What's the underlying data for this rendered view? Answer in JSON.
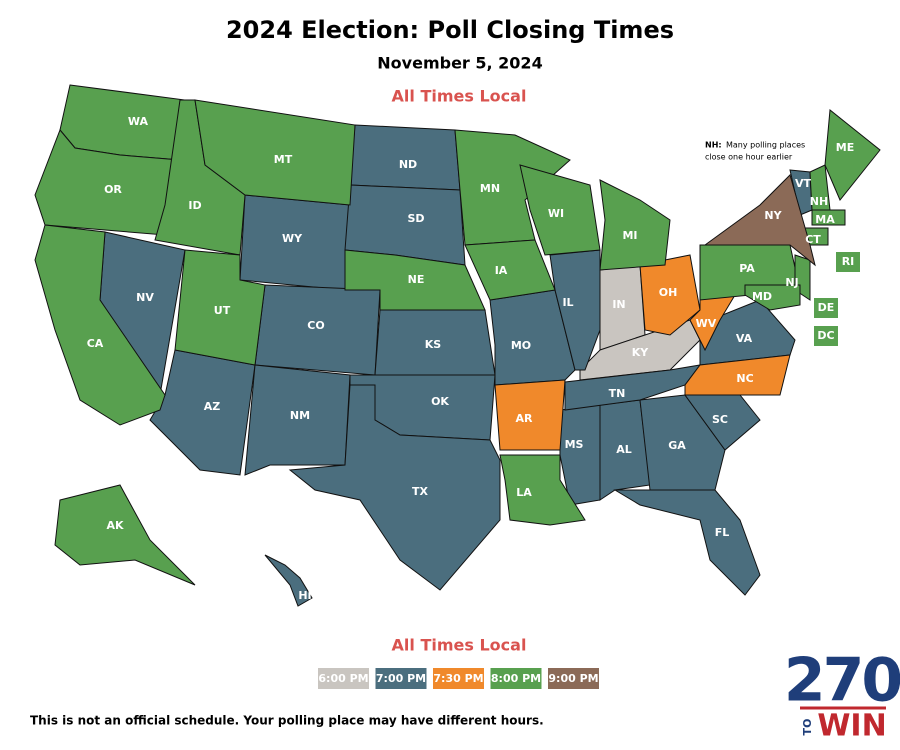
{
  "title": "2024 Election: Poll Closing Times",
  "subtitle": "November 5, 2024",
  "header_note": "All Times Local",
  "nh_note": {
    "abbr": "NH:",
    "line1": "Many polling places",
    "line2": "close one hour earlier"
  },
  "legend": {
    "title": "All Times Local",
    "items": [
      {
        "label": "6:00 PM",
        "color": "#c9c5c0",
        "states": [
          "IN",
          "KY"
        ]
      },
      {
        "label": "7:00 PM",
        "color": "#4b6e7e",
        "states": [
          "VT",
          "NV",
          "WY",
          "AZ",
          "CO",
          "NM",
          "ND",
          "SD",
          "KS",
          "OK",
          "TX",
          "MO",
          "IL",
          "MS",
          "AL",
          "GA",
          "SC",
          "VA",
          "FL",
          "TN",
          "HI"
        ]
      },
      {
        "label": "7:30 PM",
        "color": "#f0892b",
        "states": [
          "OH",
          "WV",
          "NC",
          "AR"
        ]
      },
      {
        "label": "8:00 PM",
        "color": "#58a04f",
        "states": [
          "WA",
          "OR",
          "CA",
          "ID",
          "MT",
          "UT",
          "NE",
          "MN",
          "IA",
          "WI",
          "MI",
          "LA",
          "PA",
          "NJ",
          "MD",
          "DE",
          "DC",
          "ME",
          "NH",
          "MA",
          "CT",
          "RI",
          "AK"
        ]
      },
      {
        "label": "9:00 PM",
        "color": "#8b6a57",
        "states": [
          "NY"
        ]
      }
    ]
  },
  "footer": "This is not an official schedule. Your polling place may have different hours.",
  "logo": {
    "number": "270",
    "to": "TO",
    "win": "WIN"
  }
}
